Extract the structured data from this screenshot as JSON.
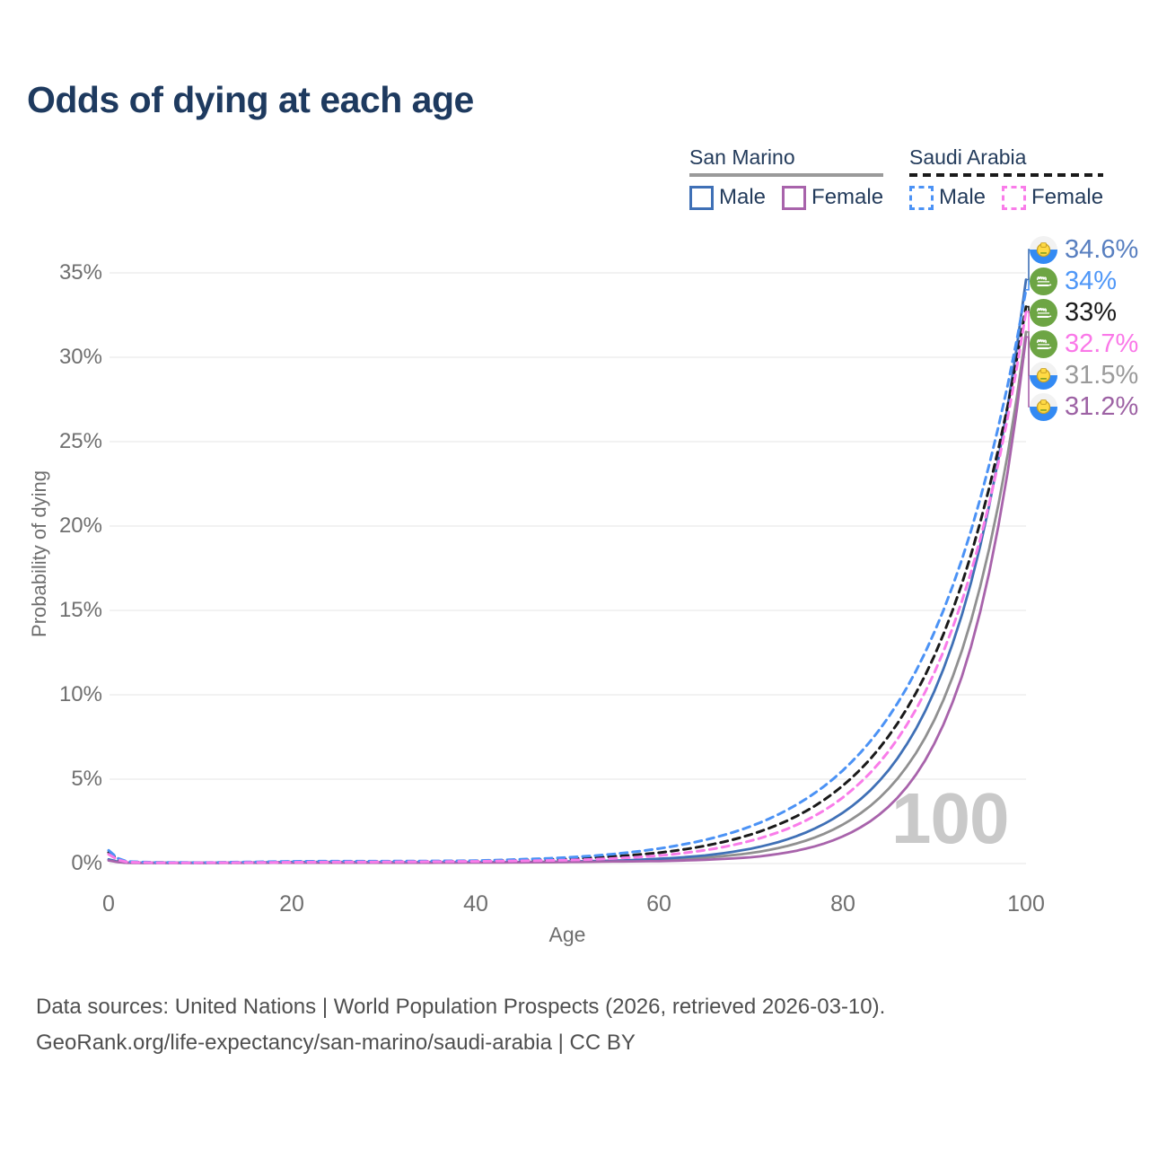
{
  "title": "Odds of dying at each age",
  "legend": {
    "groups": [
      {
        "name": "San Marino",
        "line_style": "solid",
        "underline_color": "#9a9a9a",
        "items": [
          {
            "label": "Male",
            "color": "#3f70b6"
          },
          {
            "label": "Female",
            "color": "#a863ab"
          }
        ]
      },
      {
        "name": "Saudi Arabia",
        "line_style": "dashed",
        "underline_color": "#1a1a1a",
        "items": [
          {
            "label": "Male",
            "color": "#4b92f5"
          },
          {
            "label": "Female",
            "color": "#f97ce9"
          }
        ]
      }
    ]
  },
  "axes": {
    "x": {
      "label": "Age",
      "tick_labels": [
        "0",
        "20",
        "40",
        "60",
        "80",
        "100"
      ]
    },
    "y": {
      "label": "Probability of dying",
      "tick_labels": [
        "0%",
        "5%",
        "10%",
        "15%",
        "20%",
        "25%",
        "30%",
        "35%"
      ]
    }
  },
  "watermark": "100",
  "footer": {
    "line1": "Data sources: United Nations | World Population Prospects (2026, retrieved 2026-03-10).",
    "line2": "GeoRank.org/life-expectancy/san-marino/saudi-arabia | CC BY"
  },
  "colors": {
    "title_text": "#1e3a5f",
    "legend_text": "#243c5c",
    "grid": "#e9e9e9",
    "axis_text": "#6f6f6f",
    "watermark": "#c9c9c9",
    "footer_text": "#4f4f4f"
  },
  "end_labels": [
    {
      "value": "34.6%",
      "series": "sm-male",
      "flag": "san-marino",
      "color": "#587fc0"
    },
    {
      "value": "34%",
      "series": "sa-male",
      "flag": "saudi-arabia",
      "color": "#4f97f7"
    },
    {
      "value": "33%",
      "series": "sa-both",
      "flag": "saudi-arabia",
      "color": "#1a1a1a"
    },
    {
      "value": "32.7%",
      "series": "sa-female",
      "flag": "saudi-arabia",
      "color": "#fa78e8"
    },
    {
      "value": "31.5%",
      "series": "sm-both",
      "flag": "san-marino",
      "color": "#9a9a9a"
    },
    {
      "value": "31.2%",
      "series": "sm-female",
      "flag": "san-marino",
      "color": "#9d62a4"
    }
  ],
  "chart_data": {
    "type": "line",
    "title": "Odds of dying at each age",
    "xlabel": "Age",
    "ylabel": "Probability of dying",
    "xlim": [
      0,
      100
    ],
    "ylim_percent": [
      0,
      35
    ],
    "x_ticks": [
      0,
      20,
      40,
      60,
      80,
      100
    ],
    "y_ticks_percent": [
      0,
      5,
      10,
      15,
      20,
      25,
      30,
      35
    ],
    "grid": "horizontal-only",
    "legend_position": "top-right",
    "ages": [
      0,
      2,
      5,
      10,
      15,
      20,
      25,
      30,
      35,
      40,
      45,
      50,
      55,
      60,
      65,
      70,
      75,
      80,
      85,
      90,
      95,
      100
    ],
    "series": [
      {
        "id": "sm-both",
        "name": "San Marino (both sexes)",
        "color": "#909090",
        "dash": false,
        "end_value_percent": 31.5,
        "values_percent": [
          0.21,
          0.05,
          0.04,
          0.04,
          0.05,
          0.07,
          0.07,
          0.06,
          0.07,
          0.07,
          0.08,
          0.1,
          0.14,
          0.21,
          0.35,
          0.62,
          1.19,
          2.3,
          4.42,
          8.5,
          16.4,
          31.5
        ]
      },
      {
        "id": "sm-male",
        "name": "San Marino Male",
        "color": "#3f70b6",
        "dash": false,
        "end_value_percent": 34.6,
        "values_percent": [
          0.25,
          0.05,
          0.04,
          0.04,
          0.06,
          0.09,
          0.09,
          0.08,
          0.08,
          0.08,
          0.09,
          0.12,
          0.17,
          0.28,
          0.48,
          0.88,
          1.63,
          3.0,
          5.52,
          10.2,
          18.8,
          34.6
        ]
      },
      {
        "id": "sm-female",
        "name": "San Marino Female",
        "color": "#a863ab",
        "dash": false,
        "end_value_percent": 31.2,
        "values_percent": [
          0.18,
          0.04,
          0.03,
          0.03,
          0.04,
          0.05,
          0.05,
          0.05,
          0.05,
          0.06,
          0.07,
          0.09,
          0.12,
          0.14,
          0.22,
          0.37,
          0.76,
          1.6,
          3.36,
          7.1,
          14.9,
          31.2
        ]
      },
      {
        "id": "sa-both",
        "name": "Saudi Arabia (both sexes)",
        "color": "#1a1a1a",
        "dash": true,
        "end_value_percent": 33.0,
        "values_percent": [
          0.66,
          0.1,
          0.06,
          0.05,
          0.07,
          0.1,
          0.11,
          0.12,
          0.13,
          0.15,
          0.2,
          0.27,
          0.42,
          0.64,
          1.05,
          1.72,
          2.81,
          4.6,
          7.53,
          12.3,
          20.2,
          33.0
        ]
      },
      {
        "id": "sa-male",
        "name": "Saudi Arabia Male",
        "color": "#4b92f5",
        "dash": true,
        "end_value_percent": 34.0,
        "values_percent": [
          0.78,
          0.12,
          0.07,
          0.06,
          0.09,
          0.13,
          0.14,
          0.14,
          0.15,
          0.17,
          0.25,
          0.36,
          0.56,
          0.89,
          1.4,
          2.21,
          3.49,
          5.5,
          8.67,
          13.7,
          21.6,
          34.0
        ]
      },
      {
        "id": "sa-female",
        "name": "Saudi Arabia Female",
        "color": "#f97ce9",
        "dash": true,
        "end_value_percent": 32.7,
        "values_percent": [
          0.55,
          0.09,
          0.05,
          0.05,
          0.06,
          0.08,
          0.09,
          0.1,
          0.11,
          0.13,
          0.16,
          0.2,
          0.3,
          0.47,
          0.79,
          1.35,
          2.29,
          3.9,
          6.64,
          11.3,
          19.2,
          32.7
        ]
      }
    ]
  }
}
